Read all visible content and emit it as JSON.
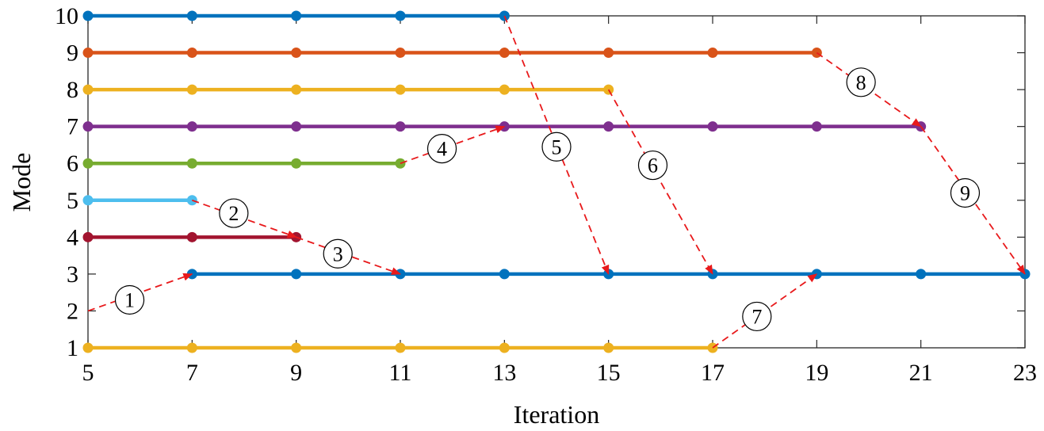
{
  "chart_data": {
    "type": "line",
    "xlabel": "Iteration",
    "ylabel": "Mode",
    "xlim": [
      5,
      23
    ],
    "ylim": [
      1,
      10
    ],
    "xticks": [
      5,
      7,
      9,
      11,
      13,
      15,
      17,
      19,
      21,
      23
    ],
    "yticks": [
      1,
      2,
      3,
      4,
      5,
      6,
      7,
      8,
      9,
      10
    ],
    "grid": false,
    "series": [
      {
        "mode": 10,
        "color": "#0072BD",
        "x": [
          5,
          7,
          9,
          11,
          13
        ]
      },
      {
        "mode": 9,
        "color": "#D95319",
        "x": [
          5,
          7,
          9,
          11,
          13,
          15,
          17,
          19
        ]
      },
      {
        "mode": 8,
        "color": "#EDB120",
        "x": [
          5,
          7,
          9,
          11,
          13,
          15
        ]
      },
      {
        "mode": 7,
        "color": "#7E2F8E",
        "x": [
          5,
          7,
          9,
          11,
          13,
          15,
          17,
          19,
          21
        ]
      },
      {
        "mode": 6,
        "color": "#77AC30",
        "x": [
          5,
          7,
          9,
          11
        ]
      },
      {
        "mode": 5,
        "color": "#4DBEEE",
        "x": [
          5,
          7
        ]
      },
      {
        "mode": 4,
        "color": "#A2142F",
        "x": [
          5,
          7,
          9
        ]
      },
      {
        "mode": 3,
        "color": "#0072BD",
        "x": [
          7,
          9,
          11,
          13,
          15,
          17,
          19,
          21,
          23
        ]
      },
      {
        "mode": 1,
        "color": "#EDB120",
        "x": [
          5,
          7,
          9,
          11,
          13,
          15,
          17
        ]
      }
    ],
    "annotations": [
      {
        "label": "1",
        "from": [
          5,
          2
        ],
        "to": [
          7,
          3
        ],
        "label_at": [
          5.8,
          2.3
        ]
      },
      {
        "label": "2",
        "from": [
          7,
          5
        ],
        "to": [
          9,
          4
        ],
        "label_at": [
          7.8,
          4.65
        ]
      },
      {
        "label": "3",
        "from": [
          9,
          4
        ],
        "to": [
          11,
          3
        ],
        "label_at": [
          9.8,
          3.55
        ]
      },
      {
        "label": "4",
        "from": [
          11,
          6
        ],
        "to": [
          13,
          7
        ],
        "label_at": [
          11.8,
          6.4
        ]
      },
      {
        "label": "5",
        "from": [
          13,
          10
        ],
        "to": [
          15,
          3
        ],
        "label_at": [
          14.0,
          6.45
        ]
      },
      {
        "label": "6",
        "from": [
          15,
          8
        ],
        "to": [
          17,
          3
        ],
        "label_at": [
          15.85,
          5.95
        ]
      },
      {
        "label": "7",
        "from": [
          17,
          1
        ],
        "to": [
          19,
          3
        ],
        "label_at": [
          17.85,
          1.85
        ]
      },
      {
        "label": "8",
        "from": [
          19,
          9
        ],
        "to": [
          21,
          7
        ],
        "label_at": [
          19.85,
          8.2
        ]
      },
      {
        "label": "9",
        "from": [
          21,
          7
        ],
        "to": [
          23,
          3
        ],
        "label_at": [
          21.85,
          5.2
        ]
      }
    ],
    "annotation_color": "#E8191B"
  }
}
